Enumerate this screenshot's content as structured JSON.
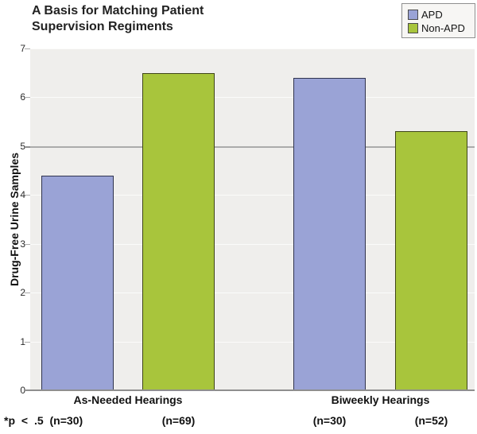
{
  "title": {
    "line1": "A Basis for Matching Patient",
    "line2": "Supervision Regiments"
  },
  "chart_data": {
    "type": "bar",
    "title": "A Basis for Matching Patient Supervision Regiments",
    "ylabel": "Drug-Free Urine Samples",
    "xlabel": "",
    "ylim": [
      0,
      7
    ],
    "yticks": [
      0,
      1,
      2,
      3,
      4,
      5,
      6,
      7
    ],
    "grid": true,
    "emphasized_gridline": 5,
    "legend_position": "top-right",
    "plot_background": "#efeeec",
    "categories": [
      "As-Needed Hearings",
      "Biweekly Hearings"
    ],
    "series": [
      {
        "name": "APD",
        "color": "#9aa3d6",
        "border": "#30344f",
        "values": [
          4.4,
          6.4
        ]
      },
      {
        "name": "Non-APD",
        "color": "#a8c53c",
        "border": "#3f4618",
        "values": [
          6.5,
          5.3
        ]
      }
    ],
    "bar_sublabels": [
      "(n=30)",
      "(n=69)",
      "(n=30)",
      "(n=52)"
    ],
    "footnote": "*p < .5 (n=30)"
  }
}
